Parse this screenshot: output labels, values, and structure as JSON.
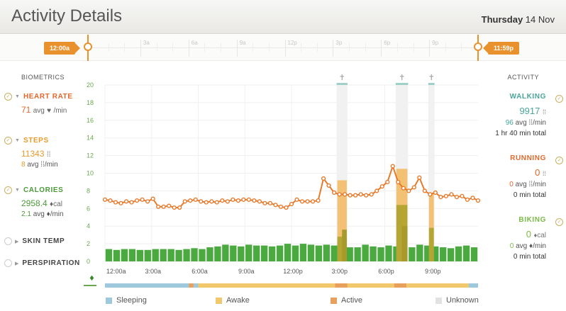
{
  "header": {
    "title": "Activity Details",
    "day": "Thursday",
    "date": "14 Nov"
  },
  "range": {
    "start_label": "12:00a",
    "end_label": "11:59p",
    "ticks": [
      "3a",
      "6a",
      "9a",
      "12p",
      "3p",
      "6p",
      "9p"
    ],
    "accent": "#e8912d"
  },
  "biometrics": {
    "title": "BIOMETRICS",
    "heart_rate": {
      "label": "HEART RATE",
      "value": "71",
      "sub": "avg",
      "unit": "/min",
      "color": "#e2682c"
    },
    "steps": {
      "label": "STEPS",
      "value": "11343",
      "sub_value": "8",
      "sub": "avg",
      "unit": "/min",
      "color": "#e89a2c"
    },
    "calories": {
      "label": "CALORIES",
      "value": "2958.4",
      "value_unit": "cal",
      "sub_value": "2.1",
      "sub": "avg",
      "unit": "/min",
      "color": "#4b9a3a"
    },
    "skin_temp": {
      "label": "SKIN TEMP"
    },
    "perspiration": {
      "label": "PERSPIRATION"
    }
  },
  "activity": {
    "title": "ACTIVITY",
    "walking": {
      "label": "WALKING",
      "value": "9917",
      "sub_value": "96",
      "sub": "avg",
      "unit": "/min",
      "total": "1 hr 40 min total",
      "color": "#4aa59a"
    },
    "running": {
      "label": "RUNNING",
      "value": "0",
      "sub_value": "0",
      "sub": "avg",
      "unit": "/min",
      "total": "0 min total",
      "color": "#e2682c"
    },
    "biking": {
      "label": "BIKING",
      "value": "0",
      "value_unit": "cal",
      "sub_value": "0",
      "sub": "avg",
      "unit": "/min",
      "total": "0 min total",
      "color": "#7cba4a"
    }
  },
  "legend": [
    {
      "label": "Sleeping",
      "color": "#9ec9dc"
    },
    {
      "label": "Awake",
      "color": "#f2c86c"
    },
    {
      "label": "Active",
      "color": "#e8a05c"
    },
    {
      "label": "Unknown",
      "color": "#e2e2e2"
    }
  ],
  "chart_data": {
    "type": "bar",
    "x_tick_labels": [
      "12:00a",
      "3:00a",
      "6:00a",
      "9:00a",
      "12:00p",
      "3:00p",
      "6:00p",
      "9:00p"
    ],
    "x_tick_hours": [
      0,
      3,
      6,
      9,
      12,
      15,
      18,
      21
    ],
    "ylim": [
      0,
      20
    ],
    "y_ticks": [
      0,
      2,
      4,
      6,
      8,
      10,
      12,
      14,
      16,
      18,
      20
    ],
    "grid": true,
    "hour_range": [
      0,
      24
    ],
    "bin_minutes": 30,
    "series": [
      {
        "kind": "calories_bars",
        "color": "#4aaa3f",
        "values": [
          1.4,
          1.3,
          1.4,
          1.4,
          1.3,
          1.3,
          1.4,
          1.4,
          1.4,
          1.3,
          1.4,
          1.5,
          1.4,
          1.6,
          1.7,
          1.9,
          1.8,
          1.7,
          1.9,
          1.8,
          1.8,
          1.7,
          1.8,
          2.0,
          1.8,
          2.0,
          1.9,
          1.8,
          1.9,
          1.8,
          1.7,
          1.6,
          1.6,
          1.9,
          1.7,
          1.6,
          1.8,
          1.7,
          1.6,
          1.6,
          1.9,
          1.8,
          1.7,
          1.6,
          1.5,
          1.7,
          1.8,
          1.6
        ]
      },
      {
        "kind": "steps_bars",
        "color": "#c2aa3a",
        "values": [
          0,
          0,
          0,
          0,
          0,
          0,
          0,
          0,
          0,
          0,
          0,
          0,
          0,
          0,
          0,
          0,
          0,
          0,
          0,
          0,
          0,
          0,
          0,
          0,
          0,
          0,
          0,
          0,
          0,
          0,
          0,
          0,
          0,
          0,
          0,
          0,
          0,
          0,
          0,
          0,
          0,
          0,
          0,
          0,
          0,
          0,
          0,
          0
        ]
      },
      {
        "kind": "heart_rate_line",
        "color": "#e87a2c",
        "values": [
          7.0,
          6.9,
          6.7,
          6.6,
          6.8,
          6.7,
          6.9,
          7.0,
          6.8,
          7.1,
          6.2,
          6.2,
          6.3,
          6.1,
          6.1,
          6.8,
          6.9,
          7.0,
          6.8,
          6.7,
          6.8,
          6.7,
          6.9,
          6.8,
          7.0,
          6.9,
          7.0,
          7.0,
          6.9,
          6.8,
          6.6,
          6.6,
          6.4,
          6.2,
          6.1,
          6.5,
          7.0,
          6.8,
          6.8,
          6.8,
          6.9,
          9.4,
          8.6,
          7.8,
          7.6,
          7.6,
          7.5,
          7.5,
          7.6,
          7.5,
          7.6,
          8.0,
          8.5,
          9.0,
          10.8,
          9.0,
          8.3,
          8.0,
          8.4,
          9.5,
          8.0,
          7.6,
          7.8,
          7.3,
          7.4,
          7.6,
          7.3,
          7.4,
          7.0,
          7.2,
          6.9
        ]
      }
    ],
    "walking_spikes": [
      {
        "hour_start": 14.9,
        "hour_end": 15.6,
        "awake_top": 9.2,
        "walk_top": 2.8,
        "walk_mid": 3.6
      },
      {
        "hour_start": 18.7,
        "hour_end": 19.5,
        "awake_top": 10.5,
        "walk_top": 6.4,
        "walk_mid": 4.0
      },
      {
        "hour_start": 20.8,
        "hour_end": 21.2,
        "awake_top": 7.8,
        "walk_top": 3.8
      }
    ],
    "state_bar": [
      {
        "state": "Sleeping",
        "from": 0.0,
        "to": 5.4
      },
      {
        "state": "Active",
        "from": 5.4,
        "to": 5.7
      },
      {
        "state": "Sleeping",
        "from": 5.7,
        "to": 6.0
      },
      {
        "state": "Awake",
        "from": 6.0,
        "to": 14.8
      },
      {
        "state": "Active",
        "from": 14.8,
        "to": 15.6
      },
      {
        "state": "Awake",
        "from": 15.6,
        "to": 18.6
      },
      {
        "state": "Active",
        "from": 18.6,
        "to": 19.4
      },
      {
        "state": "Awake",
        "from": 19.4,
        "to": 23.4
      },
      {
        "state": "Sleeping",
        "from": 23.4,
        "to": 24.0
      }
    ]
  }
}
